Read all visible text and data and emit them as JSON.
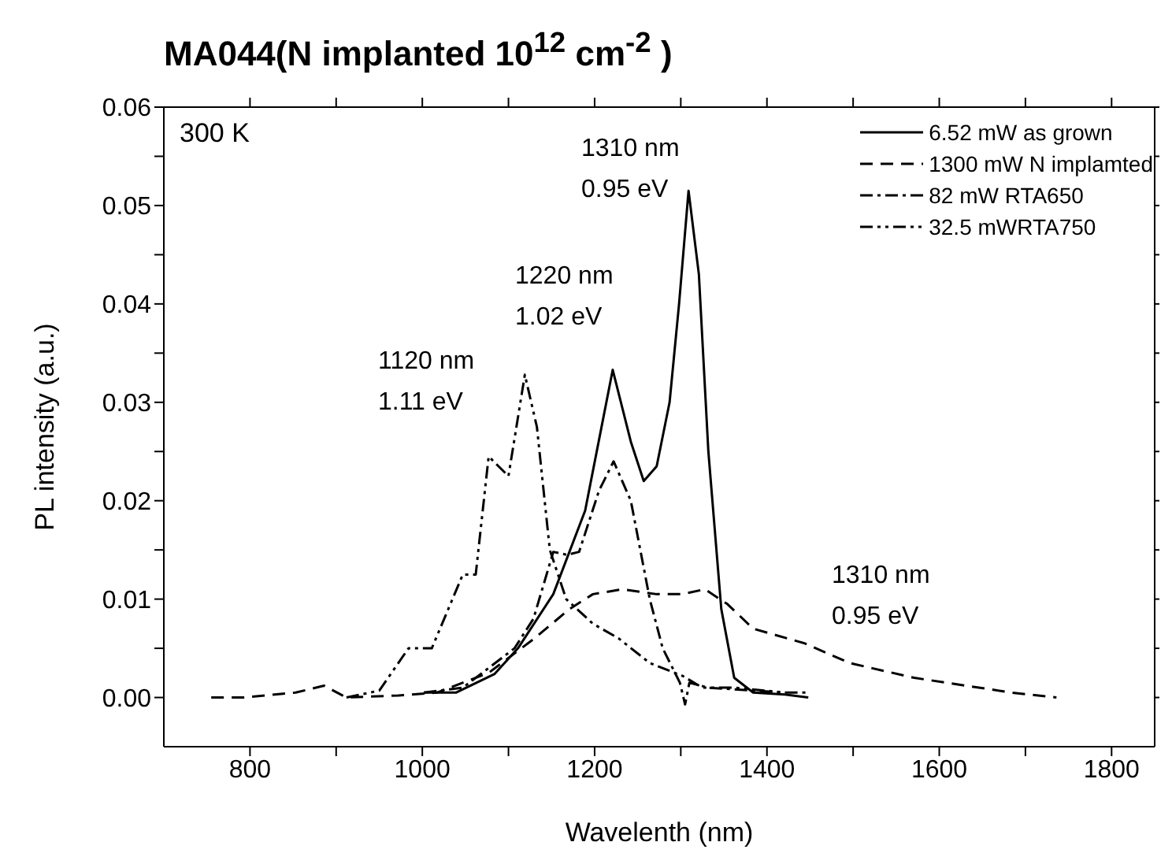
{
  "chart_data": {
    "type": "line",
    "title": "MA044(N implanted 10$^{12}$ cm$^{-2}$ )",
    "xlabel": "Wavelenth (nm)",
    "ylabel": "PL intensity (a.u.)",
    "xlim": [
      700,
      1850
    ],
    "xticks": [
      800,
      {
        "value": 900,
        "label": null
      },
      1000,
      {
        "value": 1100,
        "label": null
      },
      1200,
      {
        "value": 1300,
        "label": null
      },
      1400,
      {
        "value": 1500,
        "label": null
      },
      1600,
      {
        "value": 1700,
        "label": null
      },
      1800
    ],
    "ylim": [
      -0.005,
      0.06
    ],
    "yticks": [
      {
        "value": 0,
        "label": "0.00"
      },
      {
        "value": 0.005,
        "label": null
      },
      {
        "value": 0.01,
        "label": "0.01"
      },
      {
        "value": 0.015,
        "label": null
      },
      {
        "value": 0.02,
        "label": "0.02"
      },
      {
        "value": 0.025,
        "label": null
      },
      {
        "value": 0.03,
        "label": "0.03"
      },
      {
        "value": 0.035,
        "label": null
      },
      {
        "value": 0.04,
        "label": "0.04"
      },
      {
        "value": 0.045,
        "label": null
      },
      {
        "value": 0.05,
        "label": "0.05"
      },
      {
        "value": 0.055,
        "label": null
      },
      {
        "value": 0.06,
        "label": "0.06"
      }
    ],
    "legend": "top right",
    "marker": "none",
    "series": [
      {
        "name": "6.52 mW as grown",
        "color": "#000000",
        "line_style": "solid",
        "x": [
          1002,
          1039,
          1084,
          1111,
          1152,
          1189,
          1221,
          1242,
          1257,
          1272,
          1287,
          1298,
          1309,
          1321,
          1332,
          1347,
          1362,
          1384,
          1421,
          1448
        ],
        "values": [
          0.0005,
          0.0005,
          0.0024,
          0.005,
          0.0105,
          0.019,
          0.0333,
          0.026,
          0.022,
          0.0235,
          0.03,
          0.04,
          0.0515,
          0.043,
          0.025,
          0.009,
          0.002,
          0.0005,
          0.0003,
          0
        ]
      },
      {
        "name": "1300 mW N implamted",
        "color": "#000000",
        "line_style": "dashed",
        "x": [
          755,
          793,
          853,
          886,
          912,
          972,
          1017,
          1077,
          1130,
          1171,
          1198,
          1232,
          1272,
          1302,
          1328,
          1354,
          1384,
          1444,
          1496,
          1571,
          1646,
          1684,
          1736
        ],
        "values": [
          0,
          0,
          0.0005,
          0.0012,
          0,
          0.0002,
          0.0005,
          0.0025,
          0.006,
          0.009,
          0.0105,
          0.011,
          0.0105,
          0.0105,
          0.011,
          0.0095,
          0.007,
          0.0055,
          0.0035,
          0.002,
          0.001,
          0.0005,
          0
        ]
      },
      {
        "name": "82 mW RTA650",
        "color": "#000000",
        "line_style": "dashdot",
        "x": [
          1002,
          1047,
          1107,
          1129,
          1152,
          1168,
          1182,
          1205,
          1222,
          1242,
          1264,
          1279,
          1299,
          1305,
          1310,
          1332,
          1421,
          1448
        ],
        "values": [
          0.0005,
          0.001,
          0.005,
          0.008,
          0.0148,
          0.0145,
          0.0148,
          0.021,
          0.024,
          0.02,
          0.01,
          0.005,
          0.0015,
          -0.0007,
          0.0015,
          0.001,
          0.0005,
          0.0005
        ]
      },
      {
        "name": "32.5 mWRTA750",
        "color": "#000000",
        "line_style": "dashdotdot",
        "x": [
          912,
          950,
          984,
          1011,
          1047,
          1062,
          1077,
          1100,
          1119,
          1133,
          1148,
          1167,
          1198,
          1228,
          1264,
          1302,
          1325,
          1362,
          1421
        ],
        "values": [
          0,
          0.0007,
          0.005,
          0.005,
          0.0125,
          0.0125,
          0.0245,
          0.0225,
          0.0328,
          0.0275,
          0.015,
          0.01,
          0.0075,
          0.006,
          0.0035,
          0.0022,
          0.001,
          0.001,
          0.0005
        ]
      }
    ],
    "annotations": [
      "300 K",
      "1310 nm",
      "0.95 eV",
      "1220 nm",
      "1.02 eV",
      "1120 nm",
      "1.11 eV",
      "1310 nm",
      "0.95 eV"
    ]
  }
}
